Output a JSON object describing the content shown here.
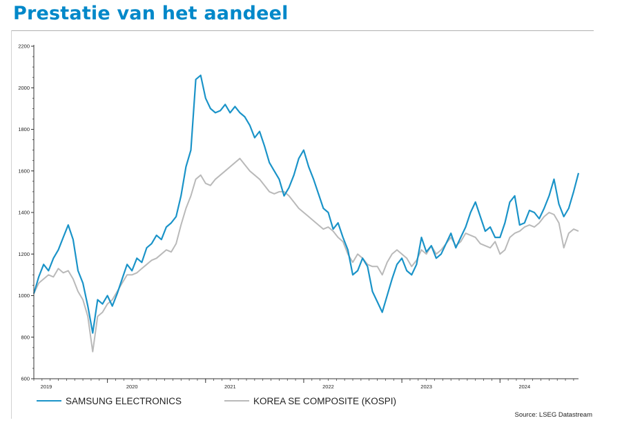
{
  "page_title": "Prestatie van het aandeel",
  "source_note": "Source: LSEG Datastream",
  "colors": {
    "title": "#0088c9",
    "samsung": "#1a93c8",
    "kospi": "#b9b9b9",
    "axis": "#333333"
  },
  "chart_data": {
    "type": "line",
    "title": "",
    "xlabel": "",
    "ylabel": "",
    "ylim": [
      600,
      2200
    ],
    "yticks": [
      600,
      800,
      1000,
      1200,
      1400,
      1600,
      1800,
      2000,
      2200
    ],
    "ytick_labels": [
      "600",
      "800",
      "1000",
      "1200",
      "1400",
      "1600",
      "1800",
      "2000",
      "2200"
    ],
    "xlim": [
      2019.0,
      2024.55
    ],
    "xticks": [
      2019,
      2020,
      2021,
      2022,
      2023,
      2024
    ],
    "xtick_labels": [
      "2019",
      "2020",
      "2021",
      "2022",
      "2023",
      "2024"
    ],
    "grid": false,
    "legend_position": "bottom-left",
    "series": [
      {
        "name": "SAMSUNG ELECTRONICS",
        "color": "#1a93c8",
        "x": [
          2019.0,
          2019.05,
          2019.1,
          2019.15,
          2019.2,
          2019.25,
          2019.3,
          2019.35,
          2019.4,
          2019.45,
          2019.5,
          2019.55,
          2019.6,
          2019.65,
          2019.7,
          2019.75,
          2019.8,
          2019.85,
          2019.9,
          2019.95,
          2020.0,
          2020.05,
          2020.1,
          2020.15,
          2020.2,
          2020.25,
          2020.3,
          2020.35,
          2020.4,
          2020.45,
          2020.5,
          2020.55,
          2020.6,
          2020.65,
          2020.7,
          2020.75,
          2020.8,
          2020.85,
          2020.9,
          2020.95,
          2021.0,
          2021.05,
          2021.1,
          2021.15,
          2021.2,
          2021.25,
          2021.3,
          2021.35,
          2021.4,
          2021.45,
          2021.5,
          2021.55,
          2021.6,
          2021.65,
          2021.7,
          2021.75,
          2021.8,
          2021.85,
          2021.9,
          2021.95,
          2022.0,
          2022.05,
          2022.1,
          2022.15,
          2022.2,
          2022.25,
          2022.3,
          2022.35,
          2022.4,
          2022.45,
          2022.5,
          2022.55,
          2022.6,
          2022.65,
          2022.7,
          2022.75,
          2022.8,
          2022.85,
          2022.9,
          2022.95,
          2023.0,
          2023.05,
          2023.1,
          2023.15,
          2023.2,
          2023.25,
          2023.3,
          2023.35,
          2023.4,
          2023.45,
          2023.5,
          2023.55,
          2023.6,
          2023.65,
          2023.7,
          2023.75,
          2023.8,
          2023.85,
          2023.9,
          2023.95,
          2024.0,
          2024.05,
          2024.1,
          2024.15,
          2024.2,
          2024.25,
          2024.3,
          2024.35,
          2024.4,
          2024.45,
          2024.5,
          2024.55
        ],
        "values": [
          1010,
          1090,
          1150,
          1120,
          1180,
          1220,
          1280,
          1340,
          1270,
          1120,
          1060,
          950,
          820,
          980,
          960,
          1000,
          950,
          1010,
          1080,
          1150,
          1120,
          1180,
          1160,
          1230,
          1250,
          1290,
          1270,
          1330,
          1350,
          1380,
          1480,
          1620,
          1700,
          2040,
          2060,
          1950,
          1900,
          1880,
          1890,
          1920,
          1880,
          1910,
          1880,
          1860,
          1820,
          1760,
          1790,
          1720,
          1640,
          1600,
          1560,
          1480,
          1520,
          1580,
          1660,
          1700,
          1620,
          1560,
          1490,
          1420,
          1400,
          1320,
          1350,
          1280,
          1220,
          1100,
          1120,
          1180,
          1140,
          1020,
          970,
          920,
          1000,
          1080,
          1150,
          1180,
          1120,
          1100,
          1150,
          1280,
          1210,
          1240,
          1180,
          1200,
          1250,
          1300,
          1230,
          1280,
          1330,
          1400,
          1450,
          1380,
          1310,
          1330,
          1280,
          1280,
          1350,
          1450,
          1480,
          1340,
          1350,
          1410,
          1400,
          1370,
          1420,
          1480,
          1560,
          1440,
          1380,
          1420,
          1500,
          1590
        ]
      },
      {
        "name": "KOREA SE COMPOSITE (KOSPI)",
        "color": "#b9b9b9",
        "x": [
          2019.0,
          2019.05,
          2019.1,
          2019.15,
          2019.2,
          2019.25,
          2019.3,
          2019.35,
          2019.4,
          2019.45,
          2019.5,
          2019.55,
          2019.6,
          2019.65,
          2019.7,
          2019.75,
          2019.8,
          2019.85,
          2019.9,
          2019.95,
          2020.0,
          2020.05,
          2020.1,
          2020.15,
          2020.2,
          2020.25,
          2020.3,
          2020.35,
          2020.4,
          2020.45,
          2020.5,
          2020.55,
          2020.6,
          2020.65,
          2020.7,
          2020.75,
          2020.8,
          2020.85,
          2020.9,
          2020.95,
          2021.0,
          2021.05,
          2021.1,
          2021.15,
          2021.2,
          2021.25,
          2021.3,
          2021.35,
          2021.4,
          2021.45,
          2021.5,
          2021.55,
          2021.6,
          2021.65,
          2021.7,
          2021.75,
          2021.8,
          2021.85,
          2021.9,
          2021.95,
          2022.0,
          2022.05,
          2022.1,
          2022.15,
          2022.2,
          2022.25,
          2022.3,
          2022.35,
          2022.4,
          2022.45,
          2022.5,
          2022.55,
          2022.6,
          2022.65,
          2022.7,
          2022.75,
          2022.8,
          2022.85,
          2022.9,
          2022.95,
          2023.0,
          2023.05,
          2023.1,
          2023.15,
          2023.2,
          2023.25,
          2023.3,
          2023.35,
          2023.4,
          2023.45,
          2023.5,
          2023.55,
          2023.6,
          2023.65,
          2023.7,
          2023.75,
          2023.8,
          2023.85,
          2023.9,
          2023.95,
          2024.0,
          2024.05,
          2024.1,
          2024.15,
          2024.2,
          2024.25,
          2024.3,
          2024.35,
          2024.4,
          2024.45,
          2024.5,
          2024.55
        ],
        "values": [
          1010,
          1060,
          1080,
          1100,
          1090,
          1130,
          1110,
          1120,
          1080,
          1020,
          980,
          900,
          730,
          900,
          920,
          960,
          980,
          1020,
          1060,
          1100,
          1100,
          1110,
          1130,
          1150,
          1170,
          1180,
          1200,
          1220,
          1210,
          1250,
          1340,
          1420,
          1480,
          1560,
          1580,
          1540,
          1530,
          1560,
          1580,
          1600,
          1620,
          1640,
          1660,
          1630,
          1600,
          1580,
          1560,
          1530,
          1500,
          1490,
          1500,
          1500,
          1480,
          1450,
          1420,
          1400,
          1380,
          1360,
          1340,
          1320,
          1330,
          1310,
          1280,
          1260,
          1200,
          1160,
          1200,
          1180,
          1150,
          1140,
          1140,
          1100,
          1160,
          1200,
          1220,
          1200,
          1180,
          1140,
          1170,
          1220,
          1200,
          1240,
          1200,
          1220,
          1250,
          1280,
          1240,
          1260,
          1300,
          1290,
          1280,
          1250,
          1240,
          1230,
          1260,
          1200,
          1220,
          1280,
          1300,
          1310,
          1330,
          1340,
          1330,
          1350,
          1380,
          1400,
          1390,
          1350,
          1230,
          1300,
          1320,
          1310
        ]
      }
    ]
  }
}
